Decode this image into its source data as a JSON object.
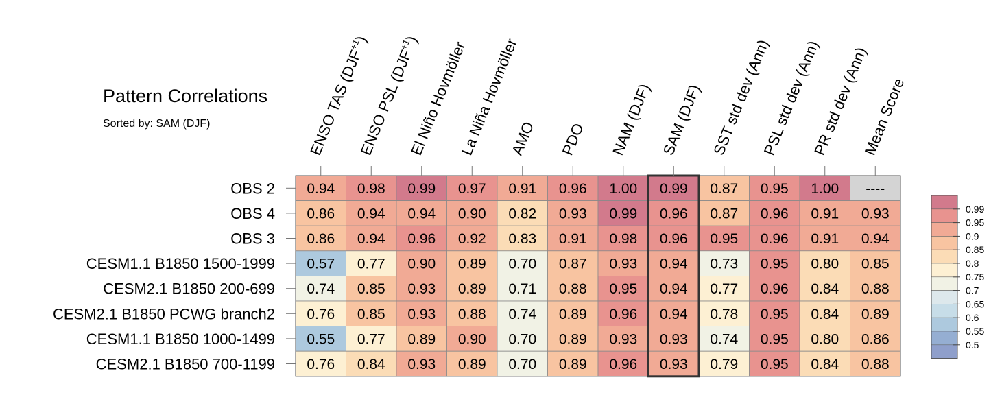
{
  "chart_data": {
    "type": "heatmap",
    "title": "Pattern Correlations",
    "subtitle": "Sorted by: SAM (DJF)",
    "columns": [
      "ENSO TAS (DJF+1)",
      "ENSO PSL (DJF+1)",
      "El Niño Hovmöller",
      "La Niña Hovmöller",
      "AMO",
      "PDO",
      "NAM (DJF)",
      "SAM (DJF)",
      "SST std dev (Ann)",
      "PSL std dev (Ann)",
      "PR std dev (Ann)",
      "Mean Score"
    ],
    "rows": [
      {
        "name": "OBS 2",
        "values": [
          "0.94",
          "0.98",
          "0.99",
          "0.97",
          "0.91",
          "0.96",
          "1.00",
          "0.99",
          "0.87",
          "0.95",
          "1.00",
          "----"
        ]
      },
      {
        "name": "OBS 4",
        "values": [
          "0.86",
          "0.94",
          "0.94",
          "0.90",
          "0.82",
          "0.93",
          "0.99",
          "0.96",
          "0.87",
          "0.96",
          "0.91",
          "0.93"
        ]
      },
      {
        "name": "OBS 3",
        "values": [
          "0.86",
          "0.94",
          "0.96",
          "0.92",
          "0.83",
          "0.91",
          "0.98",
          "0.96",
          "0.95",
          "0.96",
          "0.91",
          "0.94"
        ]
      },
      {
        "name": "CESM1.1 B1850 1500-1999",
        "values": [
          "0.57",
          "0.77",
          "0.90",
          "0.89",
          "0.70",
          "0.87",
          "0.93",
          "0.94",
          "0.73",
          "0.95",
          "0.80",
          "0.85"
        ]
      },
      {
        "name": "CESM2.1 B1850 200-699",
        "values": [
          "0.74",
          "0.85",
          "0.93",
          "0.89",
          "0.71",
          "0.88",
          "0.95",
          "0.94",
          "0.77",
          "0.96",
          "0.84",
          "0.88"
        ]
      },
      {
        "name": "CESM2.1 B1850 PCWG branch2",
        "values": [
          "0.76",
          "0.85",
          "0.93",
          "0.88",
          "0.74",
          "0.89",
          "0.96",
          "0.94",
          "0.78",
          "0.95",
          "0.84",
          "0.89"
        ]
      },
      {
        "name": "CESM1.1 B1850 1000-1499",
        "values": [
          "0.55",
          "0.77",
          "0.89",
          "0.90",
          "0.70",
          "0.89",
          "0.93",
          "0.93",
          "0.74",
          "0.95",
          "0.80",
          "0.86"
        ]
      },
      {
        "name": "CESM2.1 B1850 700-1199",
        "values": [
          "0.76",
          "0.84",
          "0.93",
          "0.89",
          "0.70",
          "0.89",
          "0.96",
          "0.93",
          "0.79",
          "0.95",
          "0.84",
          "0.88"
        ]
      }
    ],
    "highlighted_column": "SAM (DJF)",
    "colorbar": {
      "labels": [
        "0.99",
        "0.95",
        "0.9",
        "0.85",
        "0.8",
        "0.75",
        "0.7",
        "0.65",
        "0.6",
        "0.55",
        "0.5"
      ],
      "colors": [
        "#d27a8c",
        "#e8938f",
        "#f1aa95",
        "#f8c4a1",
        "#fbdcb6",
        "#fdf0d3",
        "#f1f2e5",
        "#dde8ec",
        "#c7dde8",
        "#adc9de",
        "#95aed2",
        "#8f9fcb"
      ]
    },
    "missing_color": "#d4d4d4",
    "highlight_border_color": "#333333"
  }
}
